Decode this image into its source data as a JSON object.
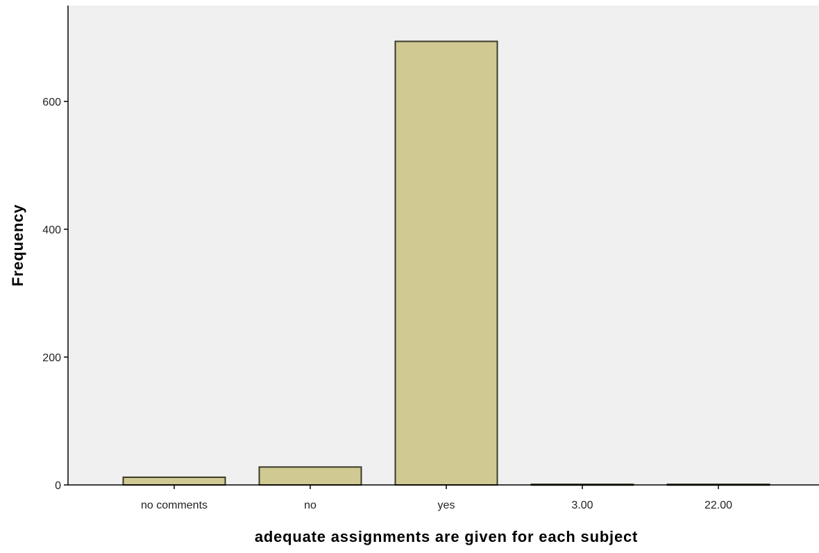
{
  "chart_data": {
    "type": "bar",
    "title": "",
    "xlabel": "adequate assignments are given for each subject",
    "ylabel": "Frequency",
    "categories": [
      "no comments",
      "no",
      "yes",
      "3.00",
      "22.00"
    ],
    "values": [
      12,
      28,
      694,
      1,
      1
    ],
    "ylim": [
      0,
      750
    ],
    "yticks": [
      0,
      200,
      400,
      600
    ],
    "ytick_labels": [
      "0",
      "200",
      "400",
      "600"
    ],
    "grid": false,
    "legend": "none"
  },
  "colors": {
    "bar_fill": "#d0c992",
    "bar_stroke": "#3a3a2a",
    "plot_background": "#f0f0f0",
    "axis": "#000000"
  }
}
